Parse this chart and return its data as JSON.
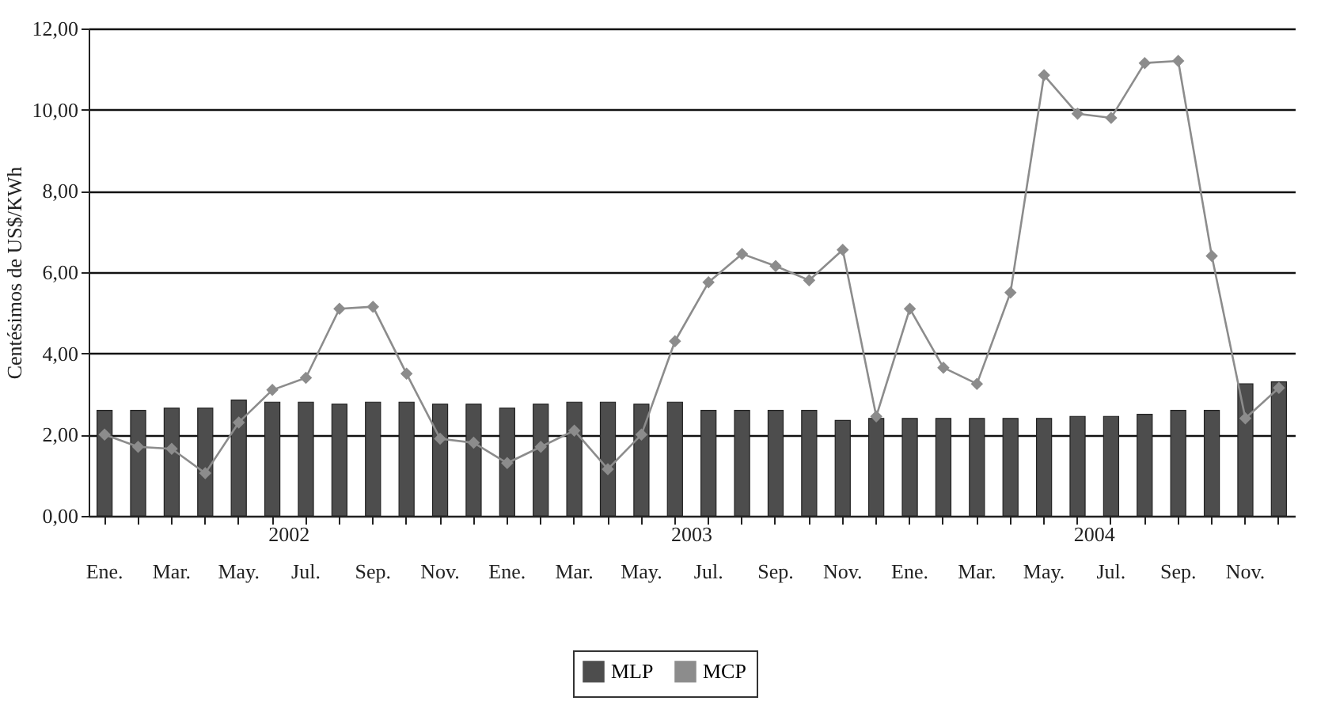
{
  "chart_data": {
    "type": "bar",
    "ylabel": "Centésimos de US$/KWh",
    "categories": [
      "Ene.",
      null,
      "Mar.",
      null,
      "May.",
      null,
      "Jul.",
      null,
      "Sep.",
      null,
      "Nov.",
      null,
      "Ene.",
      null,
      "Mar.",
      null,
      "May.",
      null,
      "Jul.",
      null,
      "Sep.",
      null,
      "Nov.",
      null,
      "Ene.",
      null,
      "Mar.",
      null,
      "May.",
      null,
      "Jul.",
      null,
      "Sep.",
      null,
      "Nov.",
      null
    ],
    "annotations": [
      "2002",
      "2003",
      "2004"
    ],
    "series": [
      {
        "name": "MLP",
        "color": "#4d4d4d",
        "values": [
          2.6,
          2.6,
          2.65,
          2.65,
          2.85,
          2.8,
          2.8,
          2.75,
          2.8,
          2.8,
          2.75,
          2.75,
          2.65,
          2.75,
          2.8,
          2.8,
          2.75,
          2.8,
          2.6,
          2.6,
          2.6,
          2.6,
          2.35,
          2.4,
          2.4,
          2.4,
          2.4,
          2.4,
          2.4,
          2.45,
          2.45,
          2.5,
          2.6,
          2.6,
          3.25,
          3.3
        ]
      },
      {
        "name": "MCP",
        "type": "line",
        "color": "#8c8c8c",
        "marker": "diamond",
        "values": [
          2.0,
          1.7,
          1.65,
          1.05,
          2.3,
          3.1,
          3.4,
          5.1,
          5.15,
          3.5,
          1.9,
          1.8,
          1.3,
          1.7,
          2.1,
          1.15,
          2.0,
          4.3,
          5.75,
          6.45,
          6.15,
          5.8,
          6.55,
          2.45,
          5.1,
          3.65,
          3.25,
          5.5,
          10.85,
          9.9,
          9.8,
          11.15,
          11.2,
          6.4,
          2.4,
          3.15
        ]
      }
    ],
    "ylim": [
      0,
      12
    ],
    "yticks": [
      {
        "value": 0,
        "label": "0,00"
      },
      {
        "value": 2,
        "label": "2,00"
      },
      {
        "value": 4,
        "label": "4,00"
      },
      {
        "value": 6,
        "label": "6,00"
      },
      {
        "value": 8,
        "label": "8,00"
      },
      {
        "value": 10,
        "label": "10,00"
      },
      {
        "value": 12,
        "label": "12,00"
      }
    ],
    "grid": "y",
    "legend": "bottom"
  }
}
